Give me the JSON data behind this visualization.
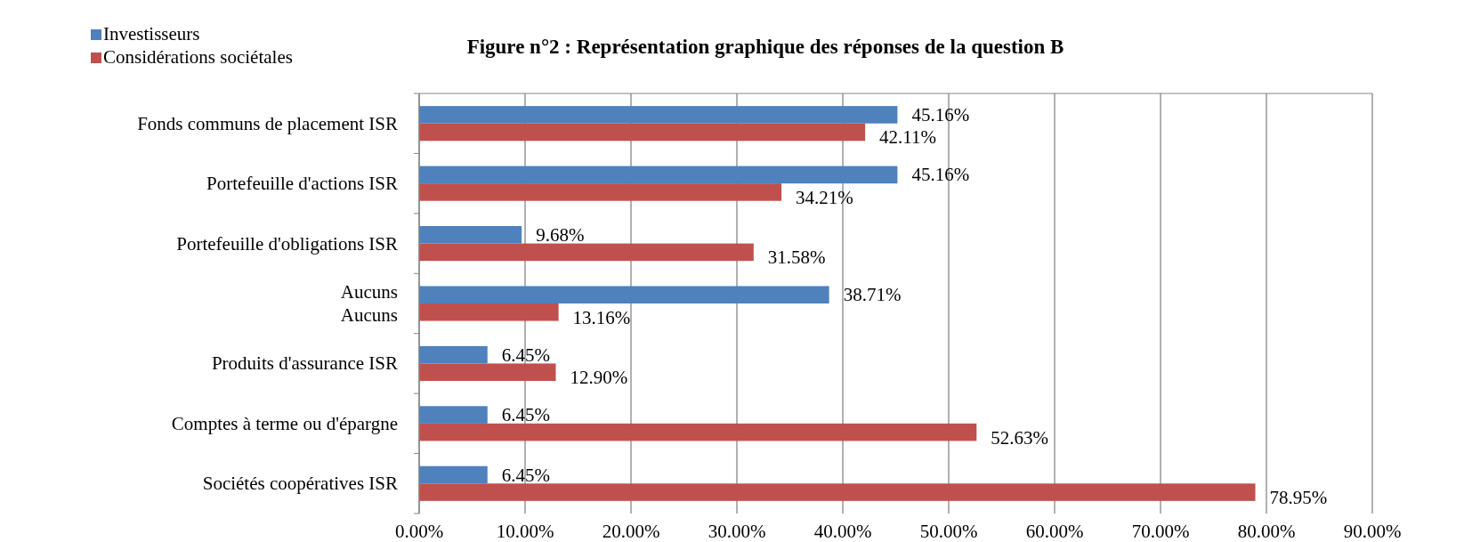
{
  "chart_data": {
    "type": "bar",
    "orientation": "horizontal",
    "title": "Figure n°2 : Représentation graphique des réponses de la question B",
    "categories": [
      "Fonds communs de placement ISR",
      "Portefeuille d'actions ISR",
      "Portefeuille d'obligations ISR",
      "Aucuns\nAucuns",
      "Produits d'assurance ISR",
      "Comptes à terme ou d'épargne",
      "Sociétés coopératives ISR"
    ],
    "series": [
      {
        "name": "Investisseurs",
        "color": "#4f81bd",
        "values": [
          45.16,
          45.16,
          9.68,
          38.71,
          6.45,
          6.45,
          6.45
        ],
        "value_labels": [
          "45.16%",
          "45.16%",
          "9.68%",
          "38.71%",
          "6.45%",
          "6.45%",
          "6.45%"
        ]
      },
      {
        "name": "Considérations sociétales",
        "color": "#c0504d",
        "values": [
          42.11,
          34.21,
          31.58,
          13.16,
          12.9,
          52.63,
          78.95
        ],
        "value_labels": [
          "42.11%",
          "34.21%",
          "31.58%",
          "13.16%",
          "12.90%",
          "52.63%",
          "78.95%"
        ]
      }
    ],
    "xlim": [
      0,
      90
    ],
    "xticks": [
      {
        "value": 0,
        "label": "0.00%"
      },
      {
        "value": 10,
        "label": "10.00%"
      },
      {
        "value": 20,
        "label": "20.00%"
      },
      {
        "value": 30,
        "label": "30.00%"
      },
      {
        "value": 40,
        "label": "40.00%"
      },
      {
        "value": 50,
        "label": "50.00%"
      },
      {
        "value": 60,
        "label": "60.00%"
      },
      {
        "value": 70,
        "label": "70.00%"
      },
      {
        "value": 80,
        "label": "80.00%"
      },
      {
        "value": 90,
        "label": "90.00%"
      }
    ],
    "grid": "x",
    "legend": "top left"
  }
}
